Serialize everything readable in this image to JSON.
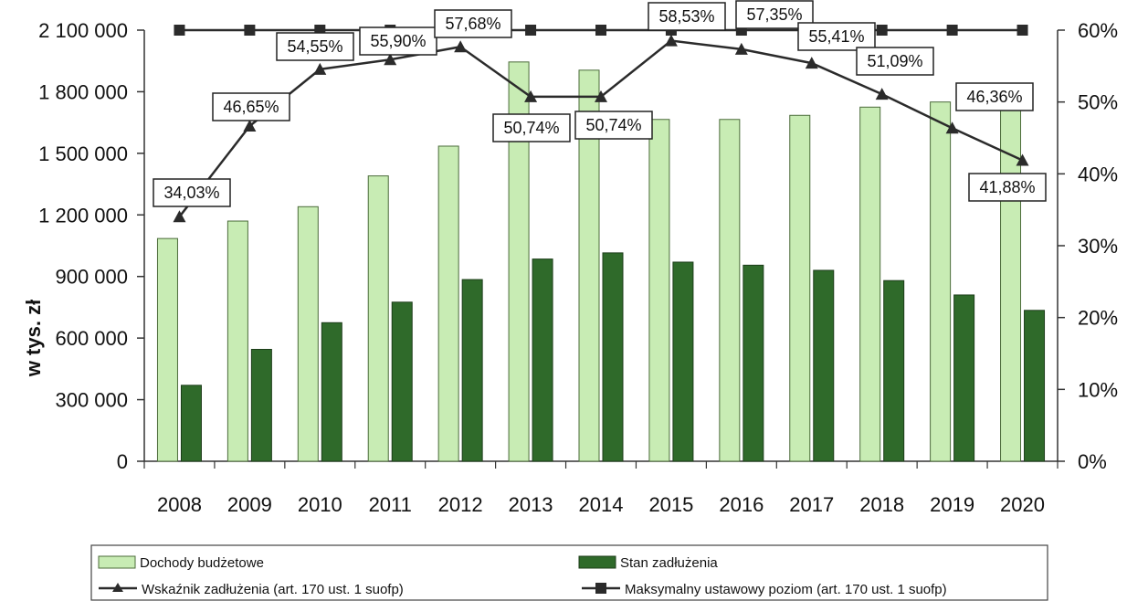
{
  "colors": {
    "budget_bar": "#c8ecb4",
    "budget_bar_stroke": "#4b6b3a",
    "debt_bar": "#2f6a2a",
    "debt_bar_stroke": "#1d3d1a",
    "line": "#2b2b2b",
    "axis": "#333333"
  },
  "chart_data": {
    "type": "bar",
    "categories": [
      "2008",
      "2009",
      "2010",
      "2011",
      "2012",
      "2013",
      "2014",
      "2015",
      "2016",
      "2017",
      "2018",
      "2019",
      "2020"
    ],
    "ylabel": "w tys. zł",
    "ylim": [
      0,
      2100000
    ],
    "y_ticks": [
      "0",
      "300 000",
      "600 000",
      "900 000",
      "1 200 000",
      "1 500 000",
      "1 800 000",
      "2 100 000"
    ],
    "y2lim": [
      0,
      0.6
    ],
    "y2_ticks": [
      "0%",
      "10%",
      "20%",
      "30%",
      "40%",
      "50%",
      "60%"
    ],
    "grid": false,
    "legend_position": "bottom",
    "series": [
      {
        "name": "Dochody budżetowe",
        "kind": "bar",
        "axis": "left",
        "values": [
          1085000,
          1170000,
          1240000,
          1390000,
          1535000,
          1945000,
          1905000,
          1665000,
          1665000,
          1685000,
          1725000,
          1750000,
          1720000
        ]
      },
      {
        "name": "Stan zadłużenia",
        "kind": "bar",
        "axis": "left",
        "values": [
          370000,
          545000,
          675000,
          775000,
          885000,
          985000,
          1015000,
          970000,
          955000,
          930000,
          880000,
          810000,
          735000
        ]
      },
      {
        "name": "Wskaźnik zadłużenia  (art. 170 ust. 1 suofp)",
        "kind": "line",
        "axis": "right",
        "marker": "triangle",
        "values": [
          0.3403,
          0.4665,
          0.5455,
          0.559,
          0.5768,
          0.5074,
          0.5074,
          0.5853,
          0.5735,
          0.5541,
          0.5109,
          0.4636,
          0.4188
        ],
        "labels": [
          "34,03%",
          "46,65%",
          "54,55%",
          "55,90%",
          "57,68%",
          "50,74%",
          "50,74%",
          "58,53%",
          "57,35%",
          "55,41%",
          "51,09%",
          "46,36%",
          "41,88%"
        ]
      },
      {
        "name": "Maksymalny ustawowy poziom (art. 170 ust. 1 suofp)",
        "kind": "line",
        "axis": "right",
        "marker": "square",
        "values": [
          0.6,
          0.6,
          0.6,
          0.6,
          0.6,
          0.6,
          0.6,
          0.6,
          0.6,
          0.6,
          0.6,
          0.6,
          0.6
        ]
      }
    ]
  }
}
